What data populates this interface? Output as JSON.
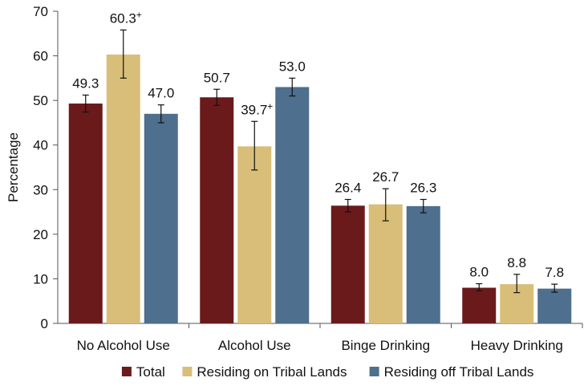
{
  "chart_data": {
    "type": "bar",
    "title": "",
    "xlabel": "",
    "ylabel": "Percentage",
    "ylim": [
      0,
      70
    ],
    "yticks": [
      0,
      10,
      20,
      30,
      40,
      50,
      60,
      70
    ],
    "categories": [
      "No Alcohol Use",
      "Alcohol Use",
      "Binge Drinking",
      "Heavy Drinking"
    ],
    "series": [
      {
        "name": "Total",
        "color": "#6B1A1C",
        "values": [
          49.3,
          50.7,
          26.4,
          8.0
        ],
        "labels": [
          "49.3",
          "50.7",
          "26.4",
          "8.0"
        ],
        "error_low": [
          47.4,
          48.9,
          25.0,
          7.3
        ],
        "error_high": [
          51.2,
          52.5,
          27.8,
          8.9
        ]
      },
      {
        "name": "Residing on Tribal Lands",
        "color": "#D8BE78",
        "values": [
          60.3,
          39.7,
          26.7,
          8.8
        ],
        "labels": [
          "60.3+",
          "39.7+",
          "26.7",
          "8.8"
        ],
        "error_low": [
          55.0,
          34.4,
          23.0,
          6.9
        ],
        "error_high": [
          65.8,
          45.3,
          30.2,
          11.0
        ]
      },
      {
        "name": "Residing off Tribal Lands",
        "color": "#4E6F8D",
        "values": [
          47.0,
          53.0,
          26.3,
          7.8
        ],
        "labels": [
          "47.0",
          "53.0",
          "26.3",
          "7.8"
        ],
        "error_low": [
          45.0,
          51.0,
          24.8,
          7.0
        ],
        "error_high": [
          49.0,
          55.0,
          27.8,
          8.8
        ]
      }
    ],
    "legend": {
      "placement": "bottom-center"
    }
  }
}
